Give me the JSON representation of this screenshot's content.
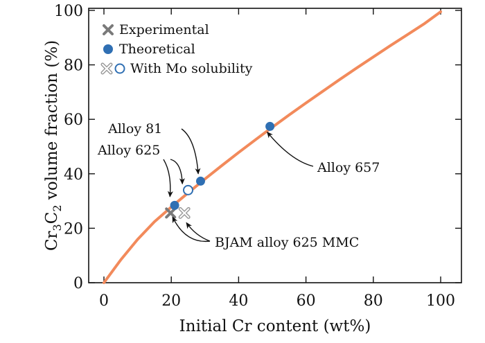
{
  "chart_data": {
    "type": "scatter",
    "xlabel": "Initial Cr content (wt%)",
    "ylabel": {
      "prefix": "Cr",
      "sub1": "3",
      "mid": "C",
      "sub2": "2",
      "suffix": " volume fraction (%)"
    },
    "xlim": [
      0,
      100
    ],
    "ylim": [
      0,
      100
    ],
    "xticks": [
      0,
      20,
      40,
      60,
      80,
      100
    ],
    "yticks": [
      0,
      20,
      40,
      60,
      80,
      100
    ],
    "grid": false,
    "legend_position": "top-left",
    "fit_curve": {
      "color": "#f28a5b",
      "points": [
        [
          0,
          0
        ],
        [
          5,
          8.4
        ],
        [
          10,
          15.9
        ],
        [
          15,
          22.4
        ],
        [
          20,
          27.8
        ],
        [
          25,
          33.0
        ],
        [
          30,
          38.1
        ],
        [
          35,
          43.0
        ],
        [
          40,
          47.8
        ],
        [
          45,
          52.5
        ],
        [
          50,
          57.1
        ],
        [
          55,
          61.6
        ],
        [
          60,
          66.0
        ],
        [
          65,
          70.3
        ],
        [
          70,
          74.6
        ],
        [
          75,
          78.8
        ],
        [
          80,
          82.9
        ],
        [
          85,
          87.0
        ],
        [
          90,
          91.0
        ],
        [
          95,
          95.0
        ],
        [
          100,
          99.5
        ]
      ]
    },
    "series": [
      {
        "name": "Experimental",
        "marker": "x-filled",
        "color": "#7a7a7a",
        "points": [
          {
            "x": 19.8,
            "y": 25.6
          }
        ]
      },
      {
        "name": "Theoretical",
        "marker": "circle-filled",
        "color": "#2f6fb3",
        "points": [
          {
            "x": 21.0,
            "y": 28.4
          },
          {
            "x": 28.7,
            "y": 37.3
          },
          {
            "x": 49.3,
            "y": 57.4
          }
        ]
      },
      {
        "name": "With Mo solubility",
        "marker": "open",
        "colors": [
          "#9a9a9a",
          "#2f6fb3"
        ],
        "points": [
          {
            "x": 23.9,
            "y": 25.6,
            "marker": "x-open"
          },
          {
            "x": 25.0,
            "y": 34.0,
            "marker": "circle-open"
          }
        ]
      }
    ],
    "annotations": [
      {
        "text": "Alloy 81",
        "arrows_to": [
          [
            28.0,
            40.0
          ]
        ]
      },
      {
        "text": "Alloy 625",
        "arrows_to": [
          [
            19.6,
            31.6
          ],
          [
            23.3,
            36.3
          ]
        ]
      },
      {
        "text": "Alloy 657",
        "arrows_to": [
          [
            48.5,
            55.3
          ]
        ]
      },
      {
        "text": "BJAM alloy 625 MMC",
        "arrows_to": [
          [
            20.4,
            24.1
          ],
          [
            24.5,
            22.0
          ]
        ]
      }
    ]
  }
}
